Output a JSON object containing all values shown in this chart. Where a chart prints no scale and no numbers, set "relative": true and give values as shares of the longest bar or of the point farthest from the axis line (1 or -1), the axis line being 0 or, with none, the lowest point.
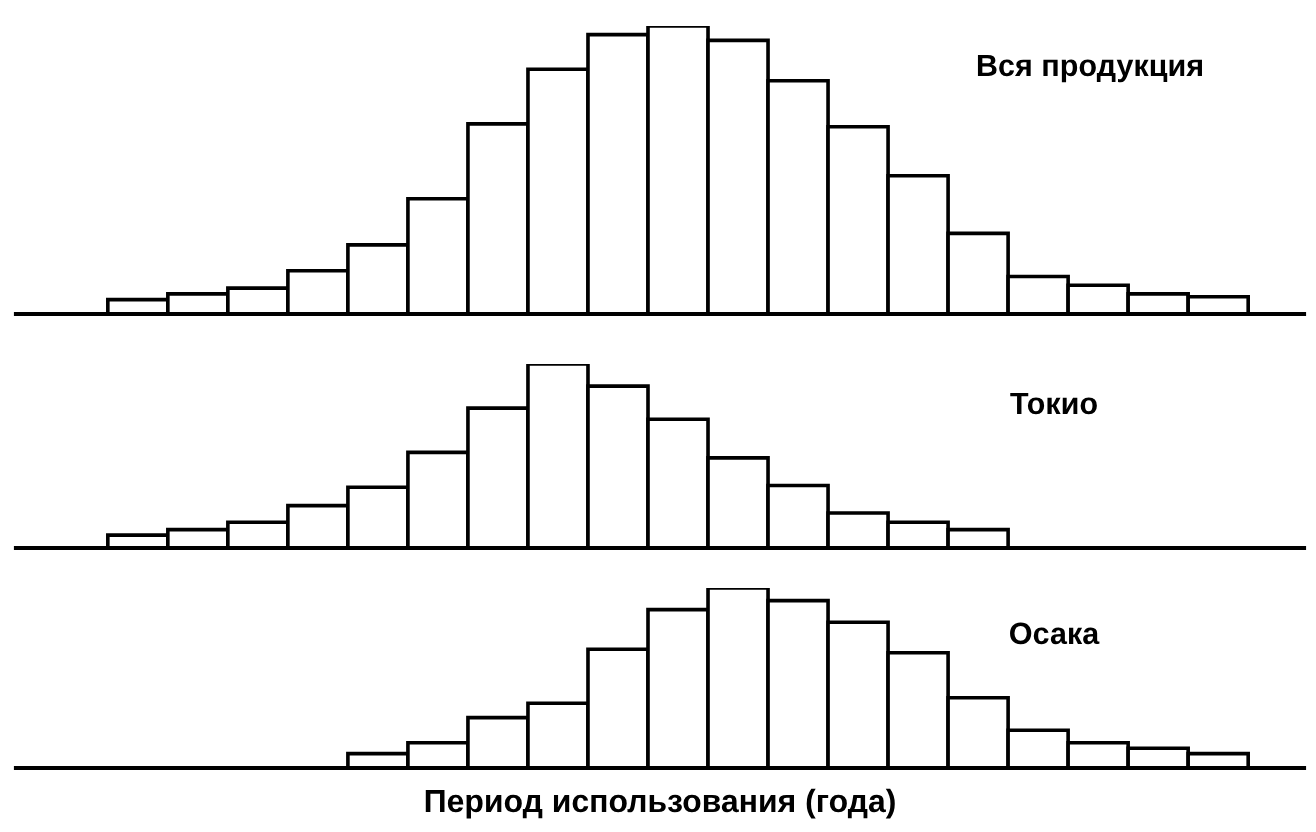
{
  "chart_data": [
    {
      "type": "bar",
      "title": "Вся продукция",
      "relative": true,
      "color": "#ffffff",
      "categories": [
        null,
        null,
        null,
        null,
        null,
        null,
        null,
        null,
        null,
        null,
        null,
        null,
        null,
        null,
        null,
        null,
        null,
        null,
        null
      ],
      "values": [
        0.05,
        0.07,
        0.09,
        0.15,
        0.24,
        0.4,
        0.66,
        0.85,
        0.97,
        1,
        0.95,
        0.81,
        0.65,
        0.48,
        0.28,
        0.13,
        0.1,
        0.07,
        0.06
      ]
    },
    {
      "type": "bar",
      "title": "Токио",
      "relative": true,
      "color": "#ffffff",
      "categories": [
        null,
        null,
        null,
        null,
        null,
        null,
        null,
        null,
        null,
        null,
        null,
        null,
        null,
        null,
        null,
        null,
        null,
        null,
        null
      ],
      "values": [
        0.07,
        0.1,
        0.14,
        0.23,
        0.33,
        0.52,
        0.76,
        1,
        0.88,
        0.7,
        0.49,
        0.34,
        0.19,
        0.14,
        0.1,
        null,
        null,
        null,
        null
      ]
    },
    {
      "type": "bar",
      "title": "Осака",
      "xlabel": "Период использования (года)",
      "relative": true,
      "color": "#ffffff",
      "categories": [
        null,
        null,
        null,
        null,
        null,
        null,
        null,
        null,
        null,
        null,
        null,
        null,
        null,
        null,
        null,
        null,
        null,
        null,
        null
      ],
      "values": [
        null,
        null,
        null,
        null,
        0.08,
        0.14,
        0.28,
        0.36,
        0.66,
        0.88,
        1,
        0.93,
        0.81,
        0.64,
        0.39,
        0.21,
        0.14,
        0.11,
        0.08
      ]
    }
  ]
}
